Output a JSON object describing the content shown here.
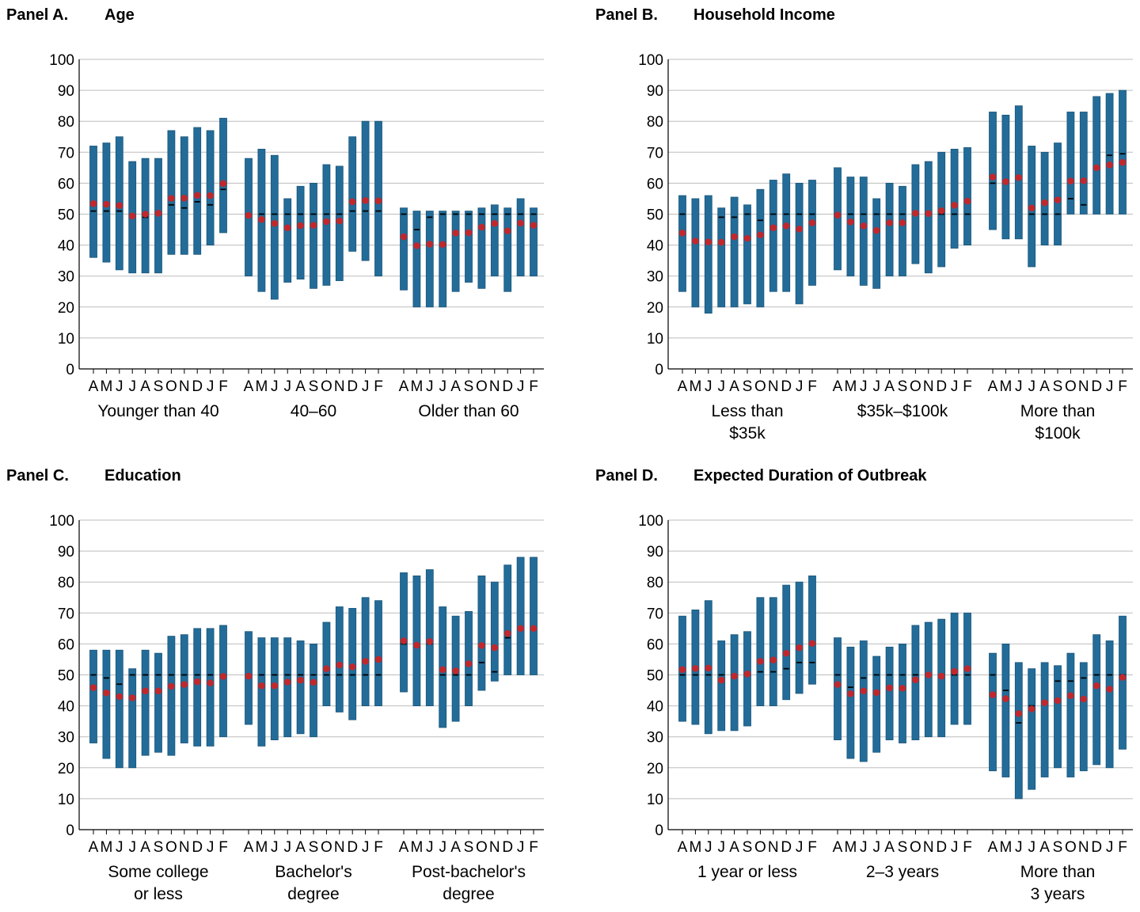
{
  "colors": {
    "bar": "#236c99",
    "bar_edge": "#1a5578",
    "median": "#000000",
    "mean": "#c0282d",
    "grid": "#bdbdbd",
    "axis": "#000000"
  },
  "months": [
    "A",
    "M",
    "J",
    "J",
    "A",
    "S",
    "O",
    "N",
    "D",
    "J",
    "F"
  ],
  "legend": "none",
  "chart_data": [
    {
      "type": "bar",
      "panel_label": "Panel A.",
      "title": "Age",
      "ylim": [
        0,
        100
      ],
      "yticks": [
        0,
        10,
        20,
        30,
        40,
        50,
        60,
        70,
        80,
        90,
        100
      ],
      "grid": true,
      "groups": [
        {
          "label": [
            "Younger than 40"
          ],
          "low": [
            36,
            34.5,
            32,
            31,
            31,
            31,
            37,
            37,
            37,
            40,
            44
          ],
          "high": [
            72,
            73,
            75,
            67,
            68,
            68,
            77,
            75,
            78,
            77,
            81
          ],
          "median": [
            51,
            51,
            51,
            49,
            49,
            50,
            53,
            52,
            54,
            53,
            58
          ],
          "mean": [
            53.4,
            53.2,
            52.8,
            49.4,
            50,
            50.3,
            55.1,
            55.2,
            56.1,
            56,
            59.9
          ]
        },
        {
          "label": [
            "40–60"
          ],
          "low": [
            30,
            25,
            22.5,
            28,
            29,
            26,
            27,
            28.5,
            38,
            35,
            30
          ],
          "high": [
            68,
            71,
            69,
            55,
            59,
            60,
            66,
            65.5,
            75,
            80,
            80
          ],
          "median": [
            50,
            50,
            50,
            50,
            50,
            50,
            50,
            50,
            51,
            51,
            51
          ],
          "mean": [
            49.6,
            48.3,
            47,
            45.6,
            46.3,
            46.4,
            47.6,
            47.8,
            54,
            54.4,
            54.3
          ]
        },
        {
          "label": [
            "Older than 60"
          ],
          "low": [
            25.5,
            20,
            20,
            20,
            25,
            28,
            26,
            30,
            25,
            30,
            30
          ],
          "high": [
            52,
            51,
            51,
            51,
            51,
            51,
            52,
            53,
            52,
            55,
            52
          ],
          "median": [
            50,
            45,
            49,
            50,
            50,
            50,
            50,
            50,
            50,
            50,
            50
          ],
          "mean": [
            42.7,
            39.8,
            40.3,
            40.2,
            43.9,
            44,
            45.8,
            47,
            44.6,
            47.1,
            46.4
          ]
        }
      ]
    },
    {
      "type": "bar",
      "panel_label": "Panel B.",
      "title": "Household Income",
      "ylim": [
        0,
        100
      ],
      "yticks": [
        0,
        10,
        20,
        30,
        40,
        50,
        60,
        70,
        80,
        90,
        100
      ],
      "grid": true,
      "groups": [
        {
          "label": [
            "Less than",
            "$35k"
          ],
          "low": [
            25,
            20,
            18,
            20,
            20,
            21,
            20,
            25,
            25,
            21,
            27
          ],
          "high": [
            56,
            55,
            56,
            52,
            55.5,
            53,
            58,
            61,
            63,
            60,
            61
          ],
          "median": [
            50,
            41,
            41,
            49,
            49,
            50,
            48,
            50,
            50,
            50,
            50
          ],
          "mean": [
            43.9,
            41.3,
            41,
            40.9,
            42.7,
            42.2,
            43.3,
            45.6,
            46.2,
            45.2,
            47.2
          ]
        },
        {
          "label": [
            "$35k–$100k"
          ],
          "low": [
            32,
            30,
            27,
            26,
            30,
            30,
            34,
            31,
            33,
            39,
            40
          ],
          "high": [
            65,
            62,
            62,
            55,
            60,
            59,
            66,
            67,
            70,
            71,
            71.5
          ],
          "median": [
            50,
            50,
            50,
            50,
            50,
            50,
            50,
            50,
            50,
            50,
            50
          ],
          "mean": [
            49.7,
            47.5,
            46.2,
            44.7,
            47.2,
            47.2,
            50.3,
            50.2,
            51.1,
            52.9,
            54.2
          ]
        },
        {
          "label": [
            "More than",
            "$100k"
          ],
          "low": [
            45,
            42,
            42,
            33,
            40,
            40,
            50,
            50,
            50,
            50,
            50
          ],
          "high": [
            83,
            82,
            85,
            72,
            70,
            73,
            83,
            83,
            88,
            89,
            90
          ],
          "median": [
            60,
            60,
            62,
            50,
            50,
            50,
            55,
            53,
            65,
            69,
            69.5
          ],
          "mean": [
            62,
            60.5,
            61.8,
            52,
            53.7,
            54.6,
            60.7,
            60.8,
            65,
            65.9,
            66.7
          ]
        }
      ]
    },
    {
      "type": "bar",
      "panel_label": "Panel C.",
      "title": "Education",
      "ylim": [
        0,
        100
      ],
      "yticks": [
        0,
        10,
        20,
        30,
        40,
        50,
        60,
        70,
        80,
        90,
        100
      ],
      "grid": true,
      "groups": [
        {
          "label": [
            "Some college",
            "or less"
          ],
          "low": [
            28,
            23,
            20,
            20,
            24,
            25,
            24,
            28,
            27,
            27,
            30
          ],
          "high": [
            58,
            58,
            58,
            52,
            58,
            57,
            62.5,
            63,
            65,
            65,
            66
          ],
          "median": [
            50,
            49,
            47,
            50,
            50,
            50,
            50,
            50,
            50,
            50,
            50
          ],
          "mean": [
            45.9,
            44.2,
            43,
            42.6,
            44.8,
            44.8,
            46.3,
            46.9,
            47.8,
            47.4,
            49.5
          ]
        },
        {
          "label": [
            "Bachelor's",
            "degree"
          ],
          "low": [
            34,
            27,
            29,
            30,
            31,
            30,
            40,
            38,
            35.5,
            40,
            40
          ],
          "high": [
            64,
            62,
            62,
            62,
            61,
            60,
            67,
            72,
            71.5,
            75,
            74
          ],
          "median": [
            50,
            50,
            50,
            50,
            50,
            50,
            50,
            50,
            50,
            50,
            50
          ],
          "mean": [
            49.6,
            46.5,
            46.5,
            47.7,
            48.3,
            47.6,
            52,
            53.2,
            52.6,
            54.4,
            55
          ]
        },
        {
          "label": [
            "Post-bachelor's",
            "degree"
          ],
          "low": [
            44.5,
            40,
            40,
            33,
            35,
            40,
            45,
            48,
            50,
            50,
            50
          ],
          "high": [
            83,
            82,
            84,
            72,
            69,
            70.5,
            82,
            80,
            85.5,
            88,
            88
          ],
          "median": [
            60,
            59,
            60,
            50,
            50,
            50,
            54,
            51,
            62,
            65,
            65
          ],
          "mean": [
            61,
            59.6,
            60.8,
            51.7,
            51.3,
            53.6,
            59.5,
            58.8,
            63.4,
            65,
            65
          ]
        }
      ]
    },
    {
      "type": "bar",
      "panel_label": "Panel D.",
      "title": "Expected Duration of Outbreak",
      "ylim": [
        0,
        100
      ],
      "yticks": [
        0,
        10,
        20,
        30,
        40,
        50,
        60,
        70,
        80,
        90,
        100
      ],
      "grid": true,
      "groups": [
        {
          "label": [
            "1 year or less"
          ],
          "low": [
            35,
            34,
            31,
            32,
            32,
            33.5,
            40,
            40,
            42,
            44,
            47
          ],
          "high": [
            69,
            71,
            74,
            61,
            63,
            64,
            75,
            75,
            79,
            80,
            82
          ],
          "median": [
            50,
            50,
            50,
            50,
            50,
            50,
            51,
            51,
            52,
            54,
            54
          ],
          "mean": [
            51.7,
            52.1,
            52.2,
            48.3,
            49.6,
            50.3,
            54.4,
            54.8,
            57,
            58.8,
            60.2
          ]
        },
        {
          "label": [
            "2–3 years"
          ],
          "low": [
            29,
            23,
            22,
            25,
            29,
            28,
            29,
            30,
            30,
            34,
            34
          ],
          "high": [
            62,
            59,
            61,
            56,
            59,
            60,
            66,
            67,
            68,
            70,
            70
          ],
          "median": [
            50,
            46,
            49,
            50,
            50,
            50,
            50,
            50,
            50,
            50,
            50
          ],
          "mean": [
            46.9,
            43.9,
            44.8,
            44.3,
            45.8,
            45.7,
            48.4,
            50,
            49.6,
            51.1,
            52
          ]
        },
        {
          "label": [
            "More than",
            "3 years"
          ],
          "low": [
            19,
            17,
            10,
            13,
            17,
            20,
            17,
            19,
            21,
            20,
            26
          ],
          "high": [
            57,
            60,
            54,
            52,
            54,
            53,
            57,
            54,
            63,
            61,
            69
          ],
          "median": [
            50,
            45,
            34.5,
            40,
            41,
            48,
            48,
            49,
            50,
            50,
            50
          ],
          "mean": [
            43.6,
            42.3,
            37.5,
            39,
            41,
            41.7,
            43.3,
            42.2,
            46.5,
            45.4,
            49.2
          ]
        }
      ]
    }
  ]
}
